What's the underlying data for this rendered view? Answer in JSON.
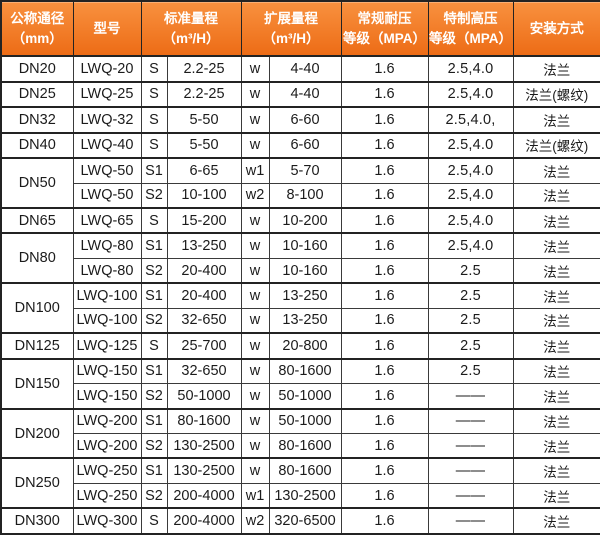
{
  "colors": {
    "header_gradient_top": "#f8913f",
    "header_gradient_bottom": "#ed6c16",
    "header_text": "#ffffff",
    "border": "#3a3a3a",
    "border_strong": "#232323",
    "body_text": "#1b1b1b"
  },
  "table": {
    "headers": [
      {
        "line1": "公称通径",
        "line2": "（mm）"
      },
      {
        "line1": "型号",
        "line2": ""
      },
      {
        "line1": "标准量程",
        "line2": "（m³/H）"
      },
      {
        "line1": "扩展量程",
        "line2": "（m³/H）"
      },
      {
        "line1": "常规耐压",
        "line2": "等级（MPA）"
      },
      {
        "line1": "特制高压",
        "line2": "等级（MPA）"
      },
      {
        "line1": "安装方式",
        "line2": ""
      }
    ],
    "groups": [
      {
        "diameter": "DN20",
        "rows": [
          {
            "model": "LWQ-20",
            "std_code": "S",
            "std_range": "2.2-25",
            "ext_code": "w",
            "ext_range": "4-40",
            "normal_pressure": "1.6",
            "special_pressure": "2.5,4.0",
            "mounting": "法兰"
          }
        ]
      },
      {
        "diameter": "DN25",
        "rows": [
          {
            "model": "LWQ-25",
            "std_code": "S",
            "std_range": "2.2-25",
            "ext_code": "w",
            "ext_range": "4-40",
            "normal_pressure": "1.6",
            "special_pressure": "2.5,4.0",
            "mounting": "法兰(螺纹)"
          }
        ]
      },
      {
        "diameter": "DN32",
        "rows": [
          {
            "model": "LWQ-32",
            "std_code": "S",
            "std_range": "5-50",
            "ext_code": "w",
            "ext_range": "6-60",
            "normal_pressure": "1.6",
            "special_pressure": "2.5,4.0,",
            "mounting": "法兰"
          }
        ]
      },
      {
        "diameter": "DN40",
        "rows": [
          {
            "model": "LWQ-40",
            "std_code": "S",
            "std_range": "5-50",
            "ext_code": "w",
            "ext_range": "6-60",
            "normal_pressure": "1.6",
            "special_pressure": "2.5,4.0",
            "mounting": "法兰(螺纹)"
          }
        ]
      },
      {
        "diameter": "DN50",
        "rows": [
          {
            "model": "LWQ-50",
            "std_code": "S1",
            "std_range": "6-65",
            "ext_code": "w1",
            "ext_range": "5-70",
            "normal_pressure": "1.6",
            "special_pressure": "2.5,4.0",
            "mounting": "法兰"
          },
          {
            "model": "LWQ-50",
            "std_code": "S2",
            "std_range": "10-100",
            "ext_code": "w2",
            "ext_range": "8-100",
            "normal_pressure": "1.6",
            "special_pressure": "2.5,4.0",
            "mounting": "法兰"
          }
        ]
      },
      {
        "diameter": "DN65",
        "rows": [
          {
            "model": "LWQ-65",
            "std_code": "S",
            "std_range": "15-200",
            "ext_code": "w",
            "ext_range": "10-200",
            "normal_pressure": "1.6",
            "special_pressure": "2.5,4.0",
            "mounting": "法兰"
          }
        ]
      },
      {
        "diameter": "DN80",
        "rows": [
          {
            "model": "LWQ-80",
            "std_code": "S1",
            "std_range": "13-250",
            "ext_code": "w",
            "ext_range": "10-160",
            "normal_pressure": "1.6",
            "special_pressure": "2.5,4.0",
            "mounting": "法兰"
          },
          {
            "model": "LWQ-80",
            "std_code": "S2",
            "std_range": "20-400",
            "ext_code": "w",
            "ext_range": "10-160",
            "normal_pressure": "1.6",
            "special_pressure": "2.5",
            "mounting": "法兰"
          }
        ]
      },
      {
        "diameter": "DN100",
        "rows": [
          {
            "model": "LWQ-100",
            "std_code": "S1",
            "std_range": "20-400",
            "ext_code": "w",
            "ext_range": "13-250",
            "normal_pressure": "1.6",
            "special_pressure": "2.5",
            "mounting": "法兰"
          },
          {
            "model": "LWQ-100",
            "std_code": "S2",
            "std_range": "32-650",
            "ext_code": "w",
            "ext_range": "13-250",
            "normal_pressure": "1.6",
            "special_pressure": "2.5",
            "mounting": "法兰"
          }
        ]
      },
      {
        "diameter": "DN125",
        "rows": [
          {
            "model": "LWQ-125",
            "std_code": "S",
            "std_range": "25-700",
            "ext_code": "w",
            "ext_range": "20-800",
            "normal_pressure": "1.6",
            "special_pressure": "2.5",
            "mounting": "法兰"
          }
        ]
      },
      {
        "diameter": "DN150",
        "rows": [
          {
            "model": "LWQ-150",
            "std_code": "S1",
            "std_range": "32-650",
            "ext_code": "w",
            "ext_range": "80-1600",
            "normal_pressure": "1.6",
            "special_pressure": "2.5",
            "mounting": "法兰"
          },
          {
            "model": "LWQ-150",
            "std_code": "S2",
            "std_range": "50-1000",
            "ext_code": "w",
            "ext_range": "50-1000",
            "normal_pressure": "1.6",
            "special_pressure": "——",
            "mounting": "法兰"
          }
        ]
      },
      {
        "diameter": "DN200",
        "rows": [
          {
            "model": "LWQ-200",
            "std_code": "S1",
            "std_range": "80-1600",
            "ext_code": "w",
            "ext_range": "50-1000",
            "normal_pressure": "1.6",
            "special_pressure": "——",
            "mounting": "法兰"
          },
          {
            "model": "LWQ-200",
            "std_code": "S2",
            "std_range": "130-2500",
            "ext_code": "w",
            "ext_range": "80-1600",
            "normal_pressure": "1.6",
            "special_pressure": "——",
            "mounting": "法兰"
          }
        ]
      },
      {
        "diameter": "DN250",
        "rows": [
          {
            "model": "LWQ-250",
            "std_code": "S1",
            "std_range": "130-2500",
            "ext_code": "w",
            "ext_range": "80-1600",
            "normal_pressure": "1.6",
            "special_pressure": "——",
            "mounting": "法兰"
          },
          {
            "model": "LWQ-250",
            "std_code": "S2",
            "std_range": "200-4000",
            "ext_code": "w1",
            "ext_range": "130-2500",
            "normal_pressure": "1.6",
            "special_pressure": "——",
            "mounting": "法兰"
          }
        ]
      },
      {
        "diameter": "DN300",
        "rows": [
          {
            "model": "LWQ-300",
            "std_code": "S",
            "std_range": "200-4000",
            "ext_code": "w2",
            "ext_range": "320-6500",
            "normal_pressure": "1.6",
            "special_pressure": "——",
            "mounting": "法兰"
          }
        ]
      }
    ]
  }
}
